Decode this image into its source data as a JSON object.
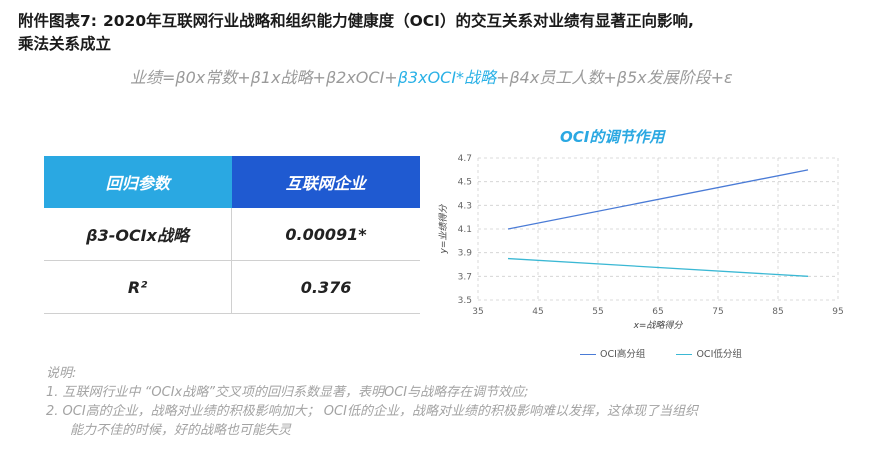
{
  "title": {
    "prefix": "附件图表7:",
    "line1": "2020年互联网行业战略和组织能力健康度（OCI）的交互关系对业绩有显著正向影响,",
    "line2": "乘法关系成立"
  },
  "formula": {
    "part1": "业绩=β0x常数+β1x战略+β2xOCI+",
    "highlight": "β3xOCI*战略",
    "part2": "+β4x员工人数+β5x发展阶段+ε"
  },
  "table": {
    "header": [
      "回归参数",
      "互联网企业"
    ],
    "rows": [
      [
        "β3-OCIx战略",
        "0.00091*"
      ],
      [
        "R²",
        "0.376"
      ]
    ]
  },
  "chart_data": {
    "type": "line",
    "title": "OCI的调节作用",
    "xlabel": "x=战略得分",
    "ylabel": "y=业绩得分",
    "xlim": [
      35,
      95
    ],
    "ylim": [
      3.5,
      4.7
    ],
    "xticks": [
      35,
      45,
      55,
      65,
      75,
      85,
      95
    ],
    "yticks": [
      3.5,
      3.7,
      3.9,
      4.1,
      4.3,
      4.5,
      4.7
    ],
    "grid": true,
    "legend": "bottom",
    "series": [
      {
        "name": "OCI高分组",
        "color": "#4a7bd6",
        "x": [
          40,
          90
        ],
        "y": [
          4.1,
          4.6
        ]
      },
      {
        "name": "OCI低分组",
        "color": "#3bb8d4",
        "x": [
          40,
          90
        ],
        "y": [
          3.85,
          3.7
        ]
      }
    ]
  },
  "notes": {
    "label": "说明:",
    "items": [
      "1.   互联网行业中 “OCIx战略”交叉项的回归系数显著，表明OCI与战略存在调节效应;",
      "2.   OCI高的企业，战略对业绩的积极影响加大；  OCI低的企业，战略对业绩的积极影响难以发挥，这体现了当组织",
      "能力不佳的时候，好的战略也可能失灵"
    ]
  }
}
